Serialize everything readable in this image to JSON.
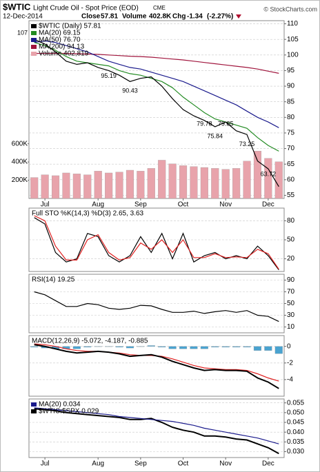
{
  "header": {
    "symbol": "$WTIC",
    "name": "Light Crude Oil - Spot Price (EOD)",
    "exchange": "CME",
    "date": "12-Dec-2014",
    "close_label": "Close",
    "close": 57.81,
    "volume_label": "Volume",
    "volume": "402.8K",
    "chg_label": "Chg",
    "chg": -1.34,
    "chg_pct": "(-2.27%)",
    "credit": "© StockCharts.com"
  },
  "chart_data": [
    {
      "type": "line",
      "categories": [
        null,
        "Jul",
        null,
        null,
        null,
        null,
        "Aug",
        null,
        null,
        null,
        "Sep",
        null,
        null,
        null,
        "Oct",
        null,
        null,
        null,
        "Nov",
        null,
        null,
        null,
        "Dec",
        null
      ],
      "ylim": [
        54,
        111
      ],
      "yticks": [
        55,
        60,
        65,
        70,
        75,
        80,
        85,
        90,
        95,
        100,
        105,
        110
      ],
      "grid": true,
      "y2lim": [
        0,
        1950000
      ],
      "y2ticks": [
        {
          "value": 200000,
          "label": "200K"
        },
        {
          "value": 400000,
          "label": "400K"
        },
        {
          "value": 600000,
          "label": "600K"
        }
      ],
      "left_label": 107,
      "series": [
        {
          "name": "Volume 402,819",
          "type": "bar",
          "axis": "y2",
          "color": "#e8a3ab",
          "values": [
            230000,
            260000,
            250000,
            280000,
            270000,
            260000,
            300000,
            280000,
            290000,
            310000,
            300000,
            330000,
            420000,
            380000,
            360000,
            350000,
            340000,
            330000,
            320000,
            330000,
            410000,
            520000,
            440000,
            402819
          ]
        },
        {
          "name": "MA(200) 94.13",
          "color": "#a0143c",
          "values": [
            100.5,
            100.5,
            100.5,
            100.5,
            100.4,
            100.3,
            100.2,
            100,
            99.8,
            99.6,
            99.5,
            99.3,
            99,
            98.7,
            98.4,
            98,
            97.6,
            97.2,
            96.8,
            96.4,
            96,
            95.5,
            94.8,
            94.13
          ]
        },
        {
          "name": "MA(50) 76.70",
          "color": "#1a1a8c",
          "values": [
            104,
            104.5,
            104,
            103,
            102,
            101,
            99.5,
            98,
            97,
            96,
            95.5,
            94.5,
            93.5,
            92.5,
            91.5,
            90,
            88.5,
            87,
            85.5,
            84,
            82,
            80,
            78.5,
            76.7
          ]
        },
        {
          "name": "MA(20) 69.15",
          "color": "#228b22",
          "values": [
            104,
            103,
            101.5,
            99.5,
            98,
            97.5,
            97,
            96.5,
            95,
            94,
            93.5,
            92.5,
            91.5,
            89.5,
            86.5,
            84,
            81.5,
            79.5,
            78.5,
            77.5,
            76.5,
            73.5,
            71,
            69.15
          ]
        },
        {
          "name": "$WTIC (Daily) 57.81",
          "color": "#000000",
          "values": [
            105,
            103.5,
            101,
            98,
            97,
            97.5,
            96,
            95,
            93.5,
            91.5,
            92.5,
            93,
            90,
            86,
            82.5,
            80.5,
            79,
            77,
            78.5,
            75.7,
            74.5,
            66,
            63.5,
            57.81
          ]
        }
      ],
      "annotations": [
        {
          "x": 7,
          "value": 95.19
        },
        {
          "x": 9,
          "value": 90.43
        },
        {
          "x": 16,
          "value": 79.78
        },
        {
          "x": 18,
          "value": 79.85
        },
        {
          "x": 17,
          "value": 75.84
        },
        {
          "x": 20,
          "value": 73.25
        },
        {
          "x": 22,
          "value": 63.72
        }
      ]
    },
    {
      "type": "line",
      "title": "Full STO %K(14,3) %D(3) 2.65, 3.63",
      "ylim": [
        0,
        100
      ],
      "yticks": [
        20,
        50,
        80
      ],
      "grid": true,
      "series": [
        {
          "color": "#000000",
          "values": [
            85,
            75,
            30,
            15,
            20,
            60,
            55,
            25,
            15,
            25,
            55,
            30,
            60,
            20,
            60,
            15,
            25,
            30,
            20,
            25,
            20,
            40,
            25,
            2.65
          ]
        },
        {
          "color": "#e02020",
          "values": [
            88,
            80,
            40,
            18,
            18,
            50,
            58,
            30,
            18,
            22,
            45,
            35,
            50,
            30,
            50,
            22,
            22,
            28,
            22,
            23,
            22,
            35,
            28,
            3.63
          ]
        }
      ]
    },
    {
      "type": "line",
      "title": "RSI(14) 19.25",
      "ylim": [
        0,
        100
      ],
      "yticks": [
        10,
        30,
        50,
        70,
        90
      ],
      "grid": true,
      "series": [
        {
          "color": "#000000",
          "values": [
            70,
            65,
            55,
            45,
            45,
            50,
            48,
            42,
            40,
            42,
            47,
            46,
            40,
            35,
            35,
            37,
            33,
            36,
            38,
            35,
            38,
            30,
            28,
            19.25
          ]
        }
      ]
    },
    {
      "type": "line",
      "title": "MACD(12,26,9) -5.072, -4.187, -0.885",
      "ylim": [
        -6,
        1.3
      ],
      "yticks": [
        -4,
        -2,
        0
      ],
      "grid": true,
      "series": [
        {
          "type": "bar",
          "color": "#4aa3d0",
          "values": [
            -0.1,
            -0.2,
            -0.3,
            -0.3,
            -0.3,
            -0.1,
            0,
            0,
            -0.1,
            -0.2,
            0,
            0.1,
            -0.1,
            -0.3,
            -0.3,
            -0.3,
            -0.3,
            -0.1,
            -0.1,
            -0.1,
            -0.1,
            -0.5,
            -0.5,
            -0.885
          ]
        },
        {
          "color": "#e02020",
          "values": [
            0.3,
            0.2,
            0,
            -0.3,
            -0.5,
            -0.6,
            -0.6,
            -0.7,
            -0.8,
            -1,
            -1.1,
            -1.1,
            -1.2,
            -1.5,
            -1.9,
            -2.3,
            -2.6,
            -2.7,
            -2.8,
            -2.8,
            -2.9,
            -3.3,
            -3.8,
            -4.187
          ]
        },
        {
          "color": "#000000",
          "width": 2,
          "values": [
            0.2,
            0,
            -0.3,
            -0.6,
            -0.8,
            -0.7,
            -0.6,
            -0.7,
            -0.9,
            -1.2,
            -1.1,
            -1,
            -1.3,
            -1.8,
            -2.2,
            -2.6,
            -2.9,
            -2.8,
            -2.9,
            -2.9,
            -3,
            -3.8,
            -4.3,
            -5.072
          ]
        }
      ]
    },
    {
      "type": "line",
      "categories": [
        null,
        "Jul",
        null,
        null,
        null,
        null,
        "Aug",
        null,
        null,
        null,
        "Sep",
        null,
        null,
        null,
        "Oct",
        null,
        null,
        null,
        "Nov",
        null,
        null,
        null,
        "Dec",
        null
      ],
      "ylim": [
        0.027,
        0.057
      ],
      "yticks": [
        {
          "value": 0.03,
          "label": "0.030"
        },
        0.035,
        {
          "value": 0.04,
          "label": "0.040"
        },
        0.045,
        {
          "value": 0.05,
          "label": "0.050"
        },
        0.055
      ],
      "grid": true,
      "series": [
        {
          "name": "$WTIC:$SPX 0.029",
          "color": "#000000",
          "width": 2,
          "values": [
            0.052,
            0.0515,
            0.051,
            0.05,
            0.0495,
            0.049,
            0.0485,
            0.048,
            0.0475,
            0.0465,
            0.0465,
            0.047,
            0.045,
            0.0425,
            0.041,
            0.04,
            0.038,
            0.038,
            0.0375,
            0.0365,
            0.036,
            0.034,
            0.032,
            0.029
          ]
        },
        {
          "name": "MA(20) 0.034",
          "color": "#1a1a8c",
          "values": [
            0.0525,
            0.052,
            0.0515,
            0.051,
            0.0505,
            0.05,
            0.0495,
            0.049,
            0.048,
            0.0475,
            0.047,
            0.0465,
            0.046,
            0.0455,
            0.0445,
            0.0435,
            0.042,
            0.041,
            0.04,
            0.039,
            0.038,
            0.037,
            0.0355,
            0.034
          ]
        }
      ]
    }
  ]
}
